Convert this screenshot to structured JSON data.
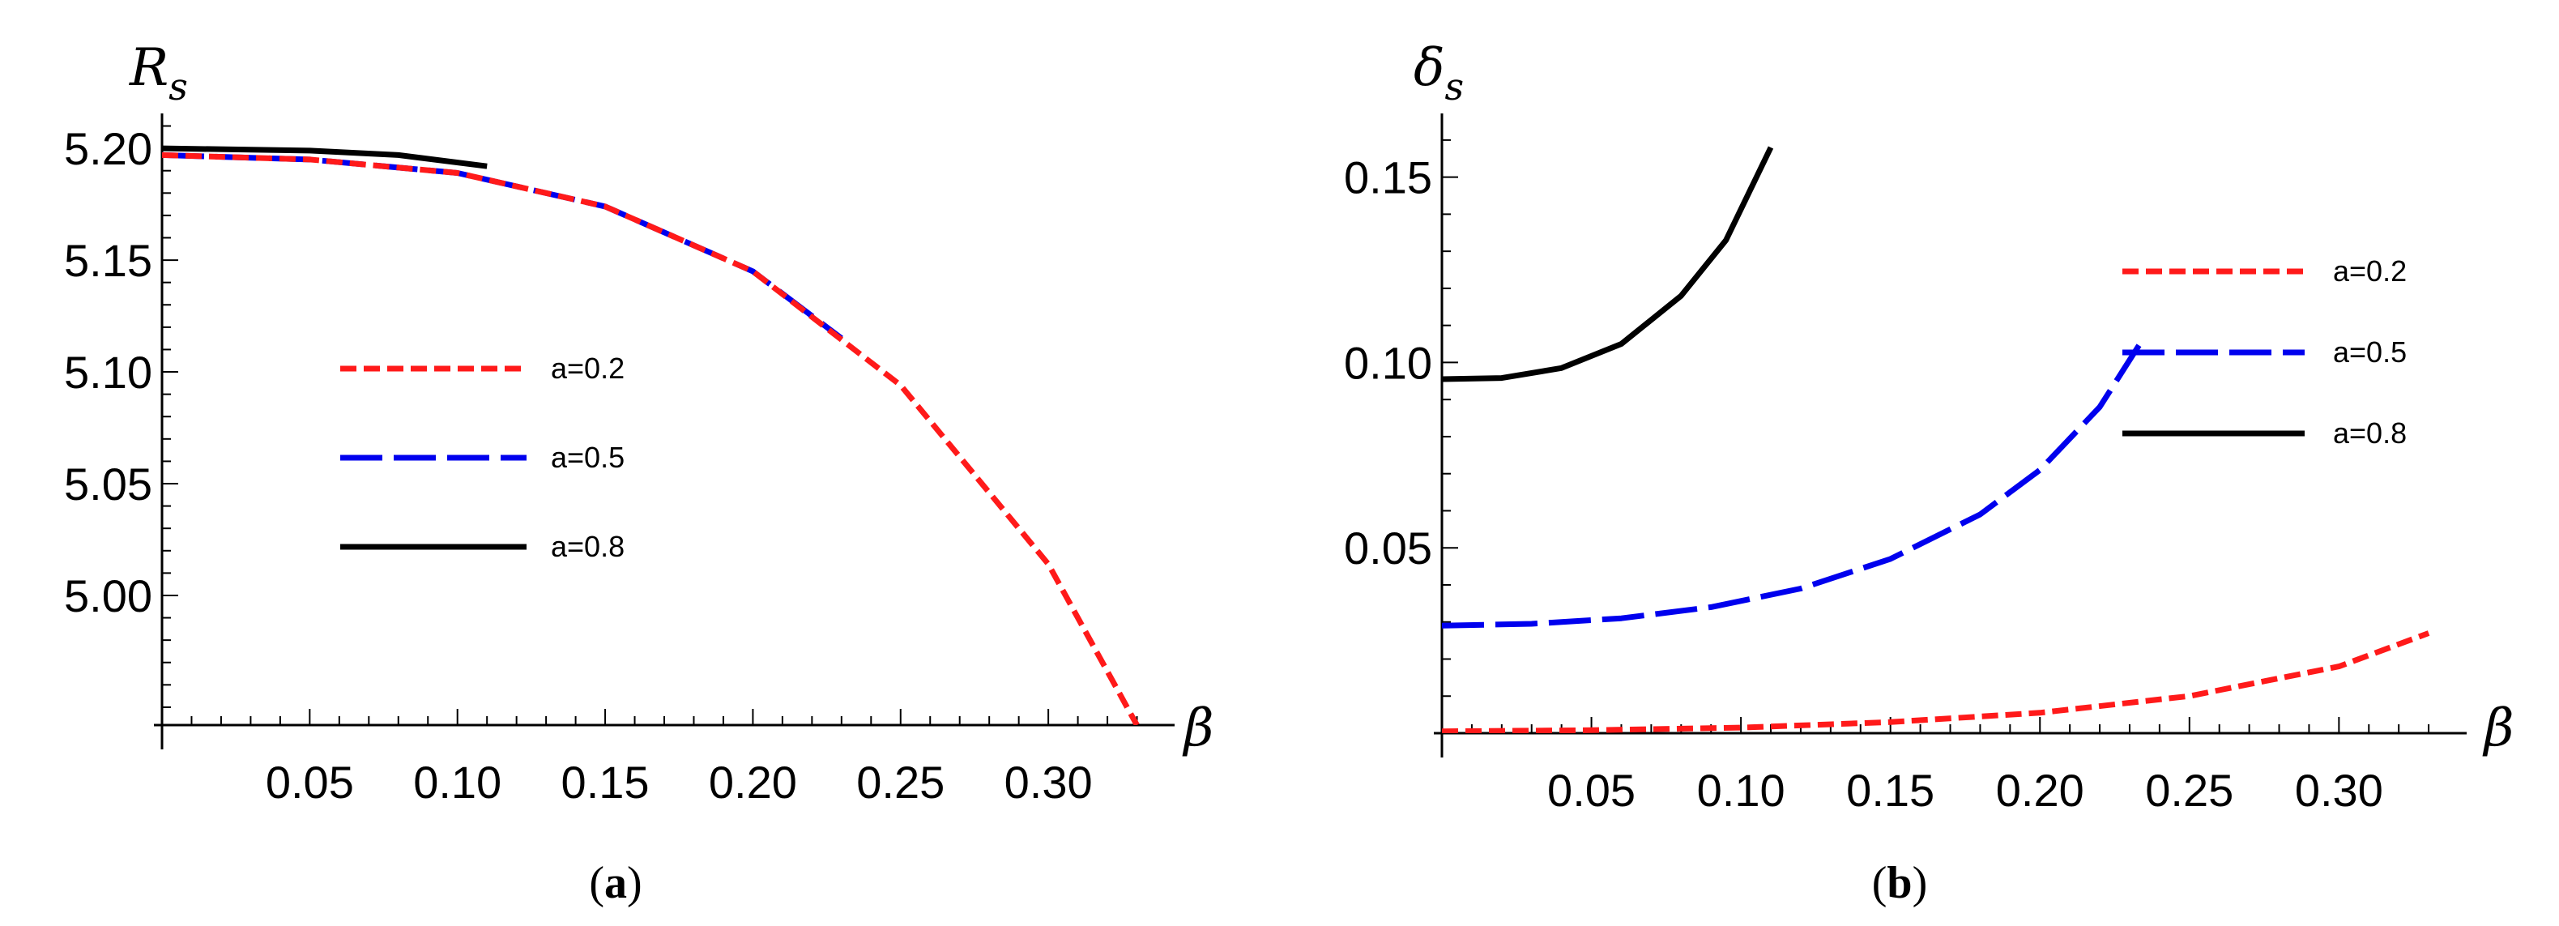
{
  "chart_data": [
    {
      "type": "line",
      "panel": "a",
      "caption": {
        "open": "(",
        "letter": "a",
        "close": ")"
      },
      "ylabel": {
        "base": "R",
        "sub": "s"
      },
      "xlabel": "β",
      "xlim": [
        0,
        0.34
      ],
      "ylim": [
        4.942,
        5.212
      ],
      "x_ticks": [
        "0.05",
        "0.10",
        "0.15",
        "0.20",
        "0.25",
        "0.30"
      ],
      "x_tick_values": [
        0.05,
        0.1,
        0.15,
        0.2,
        0.25,
        0.3
      ],
      "y_ticks": [
        "5.00",
        "5.05",
        "5.10",
        "5.15",
        "5.20"
      ],
      "y_tick_values": [
        5.0,
        5.05,
        5.1,
        5.15,
        5.2
      ],
      "legend_position": "center-left",
      "series": [
        {
          "name": "a=0.2",
          "color": "#ff1a1a",
          "dash": "short",
          "x": [
            0,
            0.05,
            0.1,
            0.15,
            0.2,
            0.25,
            0.3,
            0.33
          ],
          "y": [
            5.197,
            5.195,
            5.189,
            5.174,
            5.145,
            5.094,
            5.014,
            4.942
          ]
        },
        {
          "name": "a=0.5",
          "color": "#0000ee",
          "dash": "long",
          "x": [
            0,
            0.05,
            0.1,
            0.15,
            0.2,
            0.23
          ],
          "y": [
            5.197,
            5.195,
            5.189,
            5.174,
            5.145,
            5.115
          ]
        },
        {
          "name": "a=0.8",
          "color": "#000000",
          "dash": "solid",
          "x": [
            0,
            0.05,
            0.08,
            0.11
          ],
          "y": [
            5.2,
            5.199,
            5.197,
            5.192
          ]
        }
      ]
    },
    {
      "type": "line",
      "panel": "b",
      "caption": {
        "open": "(",
        "letter": "b",
        "close": ")"
      },
      "ylabel": {
        "base": "δ",
        "sub": "s"
      },
      "xlabel": "β",
      "xlim": [
        0,
        0.34
      ],
      "ylim": [
        0,
        0.165
      ],
      "x_ticks": [
        "0.05",
        "0.10",
        "0.15",
        "0.20",
        "0.25",
        "0.30"
      ],
      "x_tick_values": [
        0.05,
        0.1,
        0.15,
        0.2,
        0.25,
        0.3
      ],
      "y_ticks": [
        "0.05",
        "0.10",
        "0.15"
      ],
      "y_tick_values": [
        0.05,
        0.1,
        0.15
      ],
      "legend_position": "top-right",
      "series": [
        {
          "name": "a=0.2",
          "color": "#ff1a1a",
          "dash": "short",
          "x": [
            0,
            0.05,
            0.1,
            0.15,
            0.2,
            0.25,
            0.3,
            0.33
          ],
          "y": [
            0.0005,
            0.0008,
            0.0015,
            0.003,
            0.0055,
            0.01,
            0.018,
            0.027
          ]
        },
        {
          "name": "a=0.5",
          "color": "#0000ee",
          "dash": "long",
          "x": [
            0,
            0.03,
            0.06,
            0.09,
            0.12,
            0.15,
            0.18,
            0.2,
            0.22,
            0.235
          ],
          "y": [
            0.029,
            0.0295,
            0.031,
            0.034,
            0.039,
            0.047,
            0.059,
            0.071,
            0.088,
            0.107
          ]
        },
        {
          "name": "a=0.8",
          "color": "#000000",
          "dash": "solid",
          "x": [
            0,
            0.02,
            0.04,
            0.06,
            0.08,
            0.095,
            0.11
          ],
          "y": [
            0.0955,
            0.0958,
            0.0985,
            0.105,
            0.118,
            0.133,
            0.158
          ]
        }
      ]
    }
  ]
}
